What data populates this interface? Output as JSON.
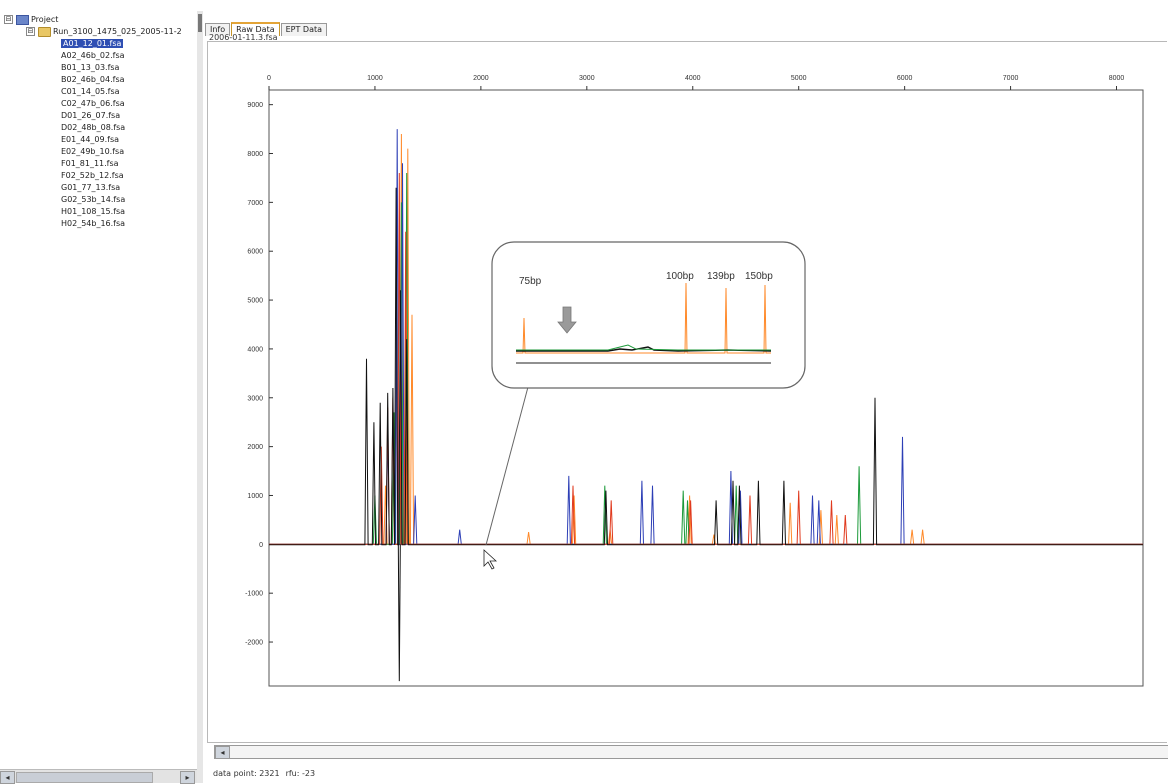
{
  "tree": {
    "project_label": "Project",
    "run_label": "Run_3100_1475_025_2005-11-2",
    "files": [
      {
        "name": "A01_12_01.fsa",
        "selected": true
      },
      {
        "name": "A02_46b_02.fsa"
      },
      {
        "name": "B01_13_03.fsa"
      },
      {
        "name": "B02_46b_04.fsa"
      },
      {
        "name": "C01_14_05.fsa"
      },
      {
        "name": "C02_47b_06.fsa"
      },
      {
        "name": "D01_26_07.fsa"
      },
      {
        "name": "D02_48b_08.fsa"
      },
      {
        "name": "E01_44_09.fsa"
      },
      {
        "name": "E02_49b_10.fsa"
      },
      {
        "name": "F01_81_11.fsa"
      },
      {
        "name": "F02_52b_12.fsa"
      },
      {
        "name": "G01_77_13.fsa"
      },
      {
        "name": "G02_53b_14.fsa"
      },
      {
        "name": "H01_108_15.fsa"
      },
      {
        "name": "H02_54b_16.fsa"
      }
    ]
  },
  "tabs": [
    {
      "label": "Info"
    },
    {
      "label": "Raw Data",
      "active": true
    },
    {
      "label": "EPT Data"
    }
  ],
  "file_label": "2006-01-11.3.fsa",
  "status": {
    "data_point": "data point: 2321",
    "rfu": "rfu: -23"
  },
  "icons": {
    "left_arrow": "◂",
    "right_arrow": "▸",
    "expand": "⊟"
  },
  "chart_data": {
    "type": "line",
    "x_ticks": [
      0,
      1000,
      2000,
      3000,
      4000,
      5000,
      6000,
      7000,
      8000
    ],
    "y_ticks": [
      -2000,
      -1000,
      0,
      1000,
      2000,
      3000,
      4000,
      5000,
      6000,
      7000,
      8000,
      9000
    ],
    "xlim": [
      0,
      8250
    ],
    "ylim": [
      -2900,
      9300
    ],
    "colors": {
      "black": "#111111",
      "blue": "#2d3fb6",
      "green": "#1c9a3a",
      "red": "#e03a1e",
      "orange": "#ff8a2a"
    },
    "peaks": {
      "black": [
        [
          920,
          3800
        ],
        [
          990,
          2500
        ],
        [
          1050,
          2900
        ],
        [
          1120,
          3100
        ],
        [
          1170,
          3200
        ],
        [
          1200,
          7300
        ],
        [
          1240,
          5200
        ],
        [
          1300,
          4200
        ],
        [
          3180,
          1100
        ],
        [
          4220,
          900
        ],
        [
          4380,
          1300
        ],
        [
          4440,
          1200
        ],
        [
          4620,
          1300
        ],
        [
          4860,
          1300
        ],
        [
          5720,
          3000
        ]
      ],
      "blue": [
        [
          1120,
          2400
        ],
        [
          1210,
          8500
        ],
        [
          1260,
          7800
        ],
        [
          1380,
          1000
        ],
        [
          1800,
          300
        ],
        [
          2830,
          1400
        ],
        [
          3520,
          1300
        ],
        [
          3620,
          1200
        ],
        [
          4360,
          1500
        ],
        [
          4450,
          1100
        ],
        [
          5130,
          1000
        ],
        [
          5190,
          900
        ],
        [
          5980,
          2200
        ]
      ],
      "green": [
        [
          1000,
          1000
        ],
        [
          1180,
          2700
        ],
        [
          1250,
          7000
        ],
        [
          1300,
          7600
        ],
        [
          3170,
          1200
        ],
        [
          3910,
          1100
        ],
        [
          3950,
          900
        ],
        [
          4410,
          1200
        ],
        [
          5570,
          1600
        ]
      ],
      "red": [
        [
          1060,
          2000
        ],
        [
          1120,
          2800
        ],
        [
          1170,
          3000
        ],
        [
          1230,
          7600
        ],
        [
          1290,
          6400
        ],
        [
          2870,
          1200
        ],
        [
          3230,
          900
        ],
        [
          3980,
          900
        ],
        [
          4540,
          1000
        ],
        [
          5000,
          1100
        ],
        [
          5310,
          900
        ],
        [
          5440,
          600
        ]
      ],
      "orange": [
        [
          1100,
          1200
        ],
        [
          1250,
          8400
        ],
        [
          1310,
          8100
        ],
        [
          1350,
          4700
        ],
        [
          2450,
          250
        ],
        [
          2880,
          1000
        ],
        [
          3220,
          300
        ],
        [
          3970,
          1000
        ],
        [
          4200,
          200
        ],
        [
          4920,
          850
        ],
        [
          5210,
          700
        ],
        [
          5360,
          600
        ],
        [
          6070,
          300
        ],
        [
          6170,
          300
        ]
      ]
    },
    "negative_dip": {
      "x": 1230,
      "min": -2800
    },
    "inset": {
      "labels": [
        "75bp",
        "100bp",
        "139bp",
        "150bp"
      ]
    }
  }
}
